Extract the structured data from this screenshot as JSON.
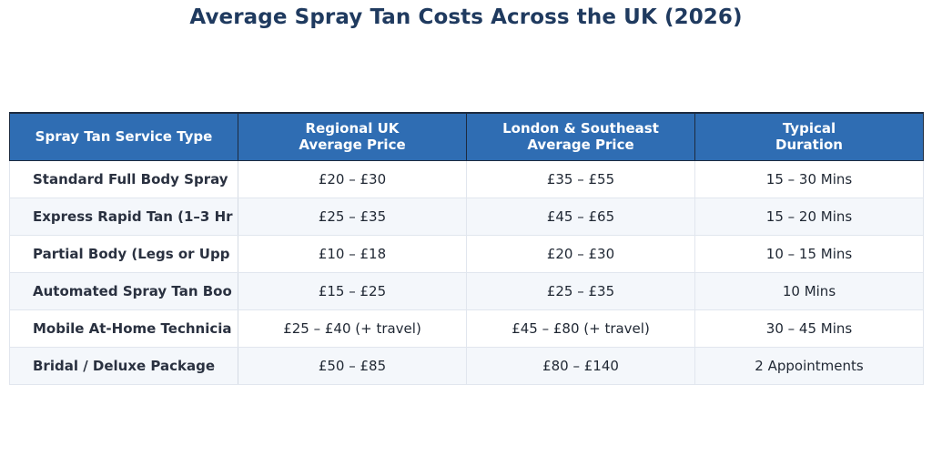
{
  "title": "Average Spray Tan Costs Across the UK (2026)",
  "table": {
    "headers": [
      "Spray Tan Service Type",
      "Regional UK\nAverage Price",
      "London & Southeast\nAverage Price",
      "Typical\nDuration"
    ],
    "rows": [
      [
        "Standard Full Body Spray",
        "£20 – £30",
        "£35 – £55",
        "15 – 30 Mins"
      ],
      [
        "Express Rapid Tan (1–3 Hr",
        "£25 – £35",
        "£45 – £65",
        "15 – 20 Mins"
      ],
      [
        "Partial Body (Legs or Upp",
        "£10 – £18",
        "£20 – £30",
        "10 – 15 Mins"
      ],
      [
        "Automated Spray Tan Boo",
        "£15 – £25",
        "£25 – £35",
        "10 Mins"
      ],
      [
        "Mobile At-Home Technicia",
        "£25 – £40 (+ travel)",
        "£45 – £80 (+ travel)",
        "30 – 45 Mins"
      ],
      [
        "Bridal / Deluxe Package",
        "£50 – £85",
        "£80 – £140",
        "2 Appointments"
      ]
    ]
  },
  "colors": {
    "title": "#1f3a5f",
    "header_bg": "#2f6db3",
    "header_text": "#ffffff",
    "row_alt_bg": "#f4f7fb"
  }
}
